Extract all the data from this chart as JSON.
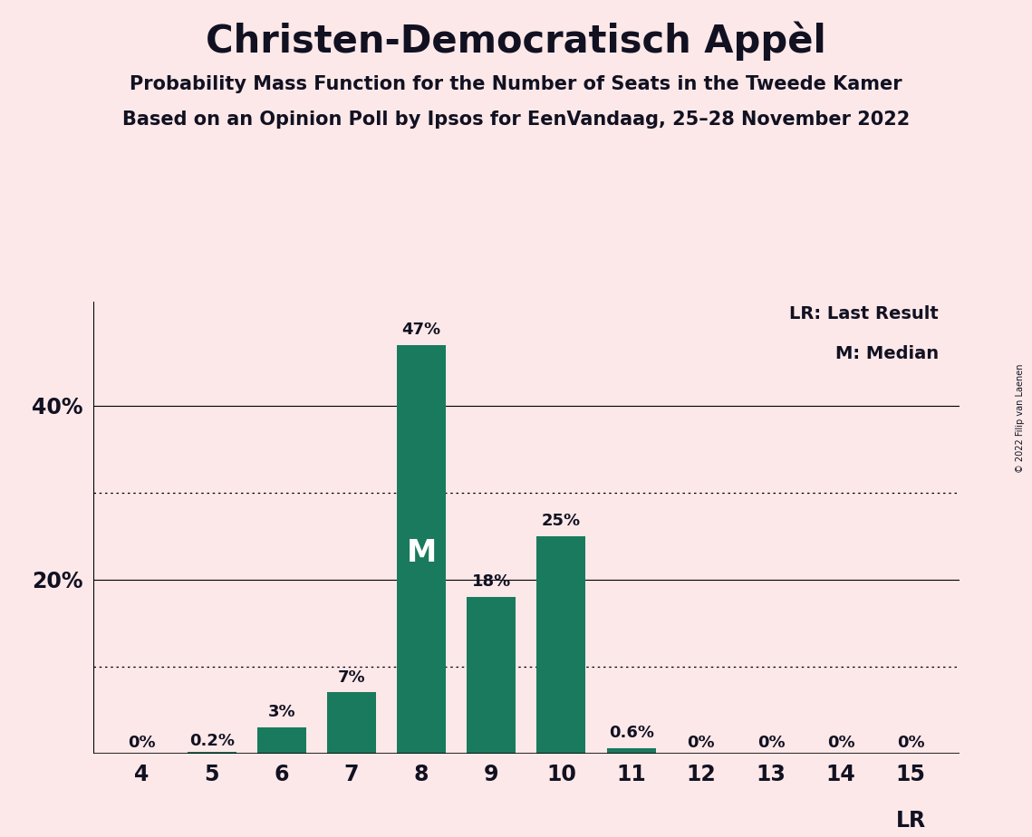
{
  "title": "Christen-Democratisch Appèl",
  "subtitle1": "Probability Mass Function for the Number of Seats in the Tweede Kamer",
  "subtitle2": "Based on an Opinion Poll by Ipsos for EenVandaag, 25–28 November 2022",
  "copyright": "© 2022 Filip van Laenen",
  "categories": [
    4,
    5,
    6,
    7,
    8,
    9,
    10,
    11,
    12,
    13,
    14,
    15
  ],
  "values": [
    0.0,
    0.2,
    3.0,
    7.0,
    47.0,
    18.0,
    25.0,
    0.6,
    0.0,
    0.0,
    0.0,
    0.0
  ],
  "bar_color": "#1a7a5e",
  "background_color": "#fce8e8",
  "text_color": "#111122",
  "bar_labels": [
    "0%",
    "0.2%",
    "3%",
    "7%",
    "47%",
    "18%",
    "25%",
    "0.6%",
    "0%",
    "0%",
    "0%",
    "0%"
  ],
  "median_bar": 8,
  "median_label": "M",
  "lr_bar": 15,
  "lr_label": "LR",
  "legend_lr": "LR: Last Result",
  "legend_m": "M: Median",
  "ylim": [
    0,
    52
  ],
  "dotted_lines": [
    10,
    30
  ],
  "solid_lines": [
    20,
    40
  ],
  "xlabel": "",
  "ylabel": ""
}
